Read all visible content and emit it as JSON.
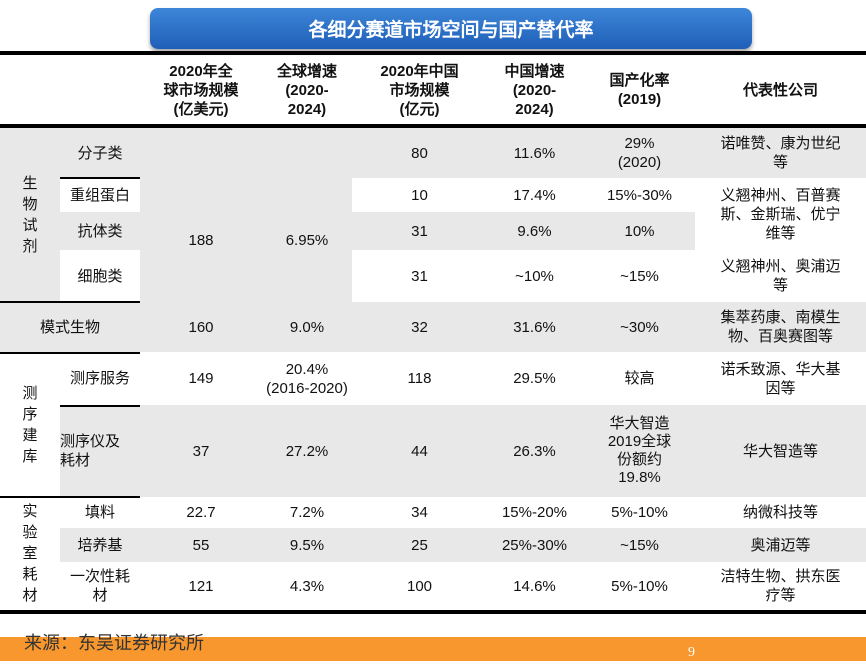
{
  "title": "各细分赛道市场空间与国产替代率",
  "header": [
    "2020年全\n球市场规模\n(亿美元)",
    "全球增速\n(2020-\n2024)",
    "2020年中国\n市场规模\n(亿元)",
    "中国增速\n(2020-\n2024)",
    "国产化率\n(2019)",
    "代表性公司"
  ],
  "categories": {
    "bio": "生物试剂",
    "model": "模式生物",
    "seq": "测序建库",
    "lab": "实验室耗材"
  },
  "bio": {
    "global_size": "188",
    "global_growth": "6.95%",
    "rows": [
      {
        "name": "分子类",
        "cn_size": "80",
        "cn_growth": "11.6%",
        "localization": "29%\n(2020)",
        "companies": "诺唯赞、康为世纪\n等"
      },
      {
        "name": "重组蛋白",
        "cn_size": "10",
        "cn_growth": "17.4%",
        "localization": "15%-30%"
      },
      {
        "name": "抗体类",
        "cn_size": "31",
        "cn_growth": "9.6%",
        "localization": "10%"
      },
      {
        "name": "细胞类",
        "cn_size": "31",
        "cn_growth": "~10%",
        "localization": "~15%",
        "companies": "义翘神州、奥浦迈\n等"
      }
    ],
    "shared_companies": "义翘神州、百普赛\n斯、金斯瑞、优宁\n维等"
  },
  "model": {
    "global_size": "160",
    "global_growth": "9.0%",
    "cn_size": "32",
    "cn_growth": "31.6%",
    "localization": "~30%",
    "companies": "集萃药康、南模生\n物、百奥赛图等"
  },
  "seq": [
    {
      "name": "测序服务",
      "global_size": "149",
      "global_growth": "20.4%\n(2016-2020)",
      "cn_size": "118",
      "cn_growth": "29.5%",
      "localization": "较高",
      "companies": "诺禾致源、华大基\n因等"
    },
    {
      "name": "测序仪及\n耗材",
      "global_size": "37",
      "global_growth": "27.2%",
      "cn_size": "44",
      "cn_growth": "26.3%",
      "localization": "华大智造\n2019全球\n份额约\n19.8%",
      "companies": "华大智造等"
    }
  ],
  "lab": [
    {
      "name": "填料",
      "global_size": "22.7",
      "global_growth": "7.2%",
      "cn_size": "34",
      "cn_growth": "15%-20%",
      "localization": "5%-10%",
      "companies": "纳微科技等"
    },
    {
      "name": "培养基",
      "global_size": "55",
      "global_growth": "9.5%",
      "cn_size": "25",
      "cn_growth": "25%-30%",
      "localization": "~15%",
      "companies": "奥浦迈等"
    },
    {
      "name": "一次性耗\n材",
      "global_size": "121",
      "global_growth": "4.3%",
      "cn_size": "100",
      "cn_growth": "14.6%",
      "localization": "5%-10%",
      "companies": "洁特生物、拱东医\n疗等"
    }
  ],
  "source": "来源：东吴证券研究所",
  "page_number": "9",
  "colors": {
    "banner": "#2a6fc9",
    "row_gray": "#e8e8e8",
    "footer": "#f7972d"
  }
}
